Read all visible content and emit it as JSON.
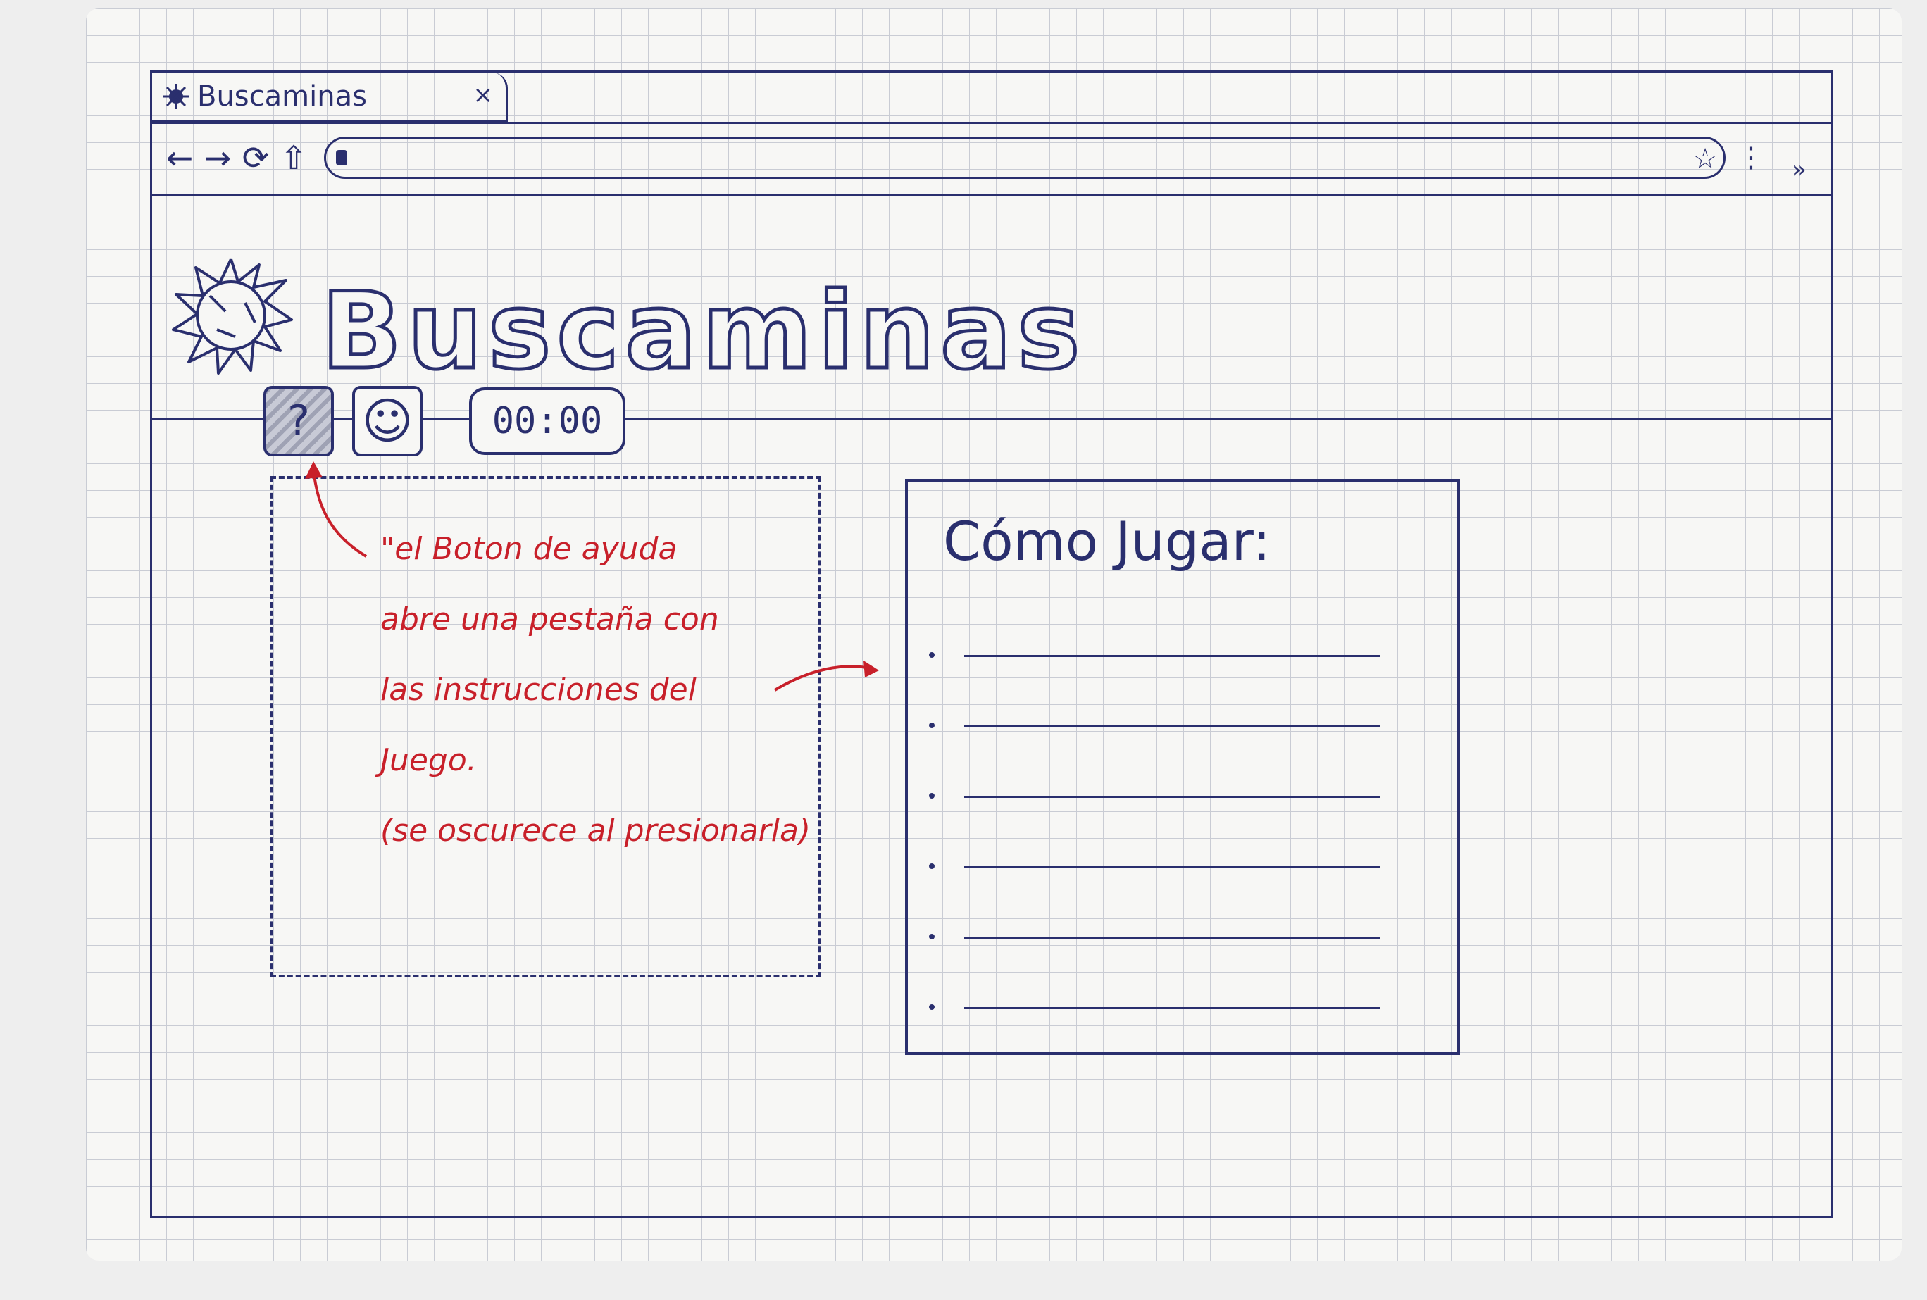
{
  "browser": {
    "tab_title": "Buscaminas",
    "tab_close": "×",
    "nav": {
      "back": "←",
      "forward": "→",
      "reload": "⟳",
      "home": "⇧"
    },
    "bookmark": "☆",
    "menu": "⋮",
    "overflow": "»"
  },
  "header": {
    "title": "Buscaminas"
  },
  "controls": {
    "help_label": "?",
    "face_label": "☺",
    "timer": "00:00"
  },
  "annotation": {
    "lines": [
      "\"el Boton de ayuda",
      "abre una pestaña con",
      "las instrucciones del",
      "Juego.",
      "(se oscurece al presionarla)"
    ]
  },
  "help_panel": {
    "title": "Cómo Jugar:",
    "item_count_lines": 6
  },
  "colors": {
    "ink": "#2a2f6e",
    "annotation": "#c8202a",
    "grid": "#c9ccd4"
  },
  "icons": {
    "tab_icon": "mine-icon",
    "logo": "mine-icon",
    "lock": "lock-icon",
    "bookmark": "star-icon",
    "menu": "kebab-icon"
  }
}
